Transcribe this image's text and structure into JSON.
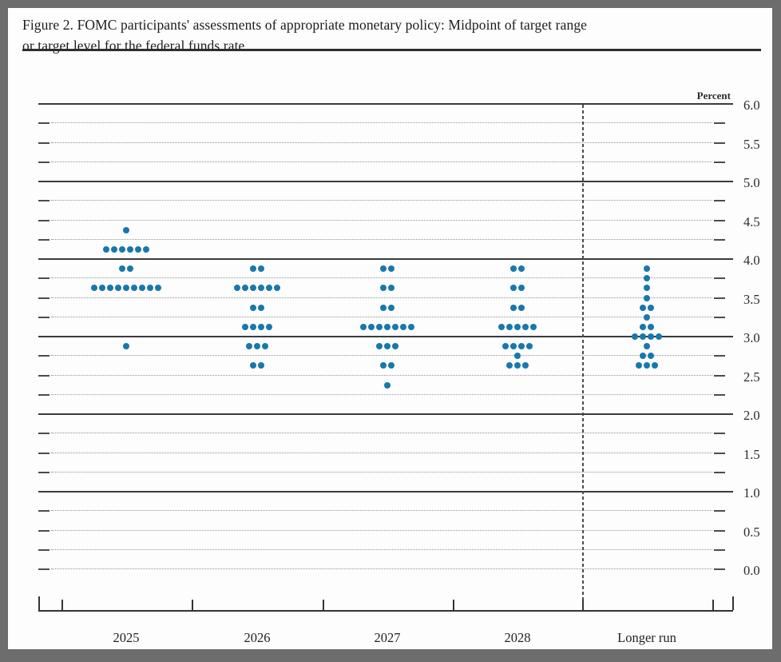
{
  "header": {
    "title_line1": "Figure 2. FOMC participants' assessments of appropriate monetary policy: Midpoint of target range",
    "title_line2": "or target level for the federal funds rate"
  },
  "chart_data": {
    "type": "scatter",
    "subtype": "fomc-dot-plot",
    "title": "Figure 2. FOMC participants' assessments of appropriate monetary policy: Midpoint of target range or target level for the federal funds rate",
    "ylabel": "Percent",
    "ylim": [
      0.0,
      6.0
    ],
    "y_tick_labels": [
      "6.0",
      "5.5",
      "5.0",
      "4.5",
      "4.0",
      "3.5",
      "3.0",
      "2.5",
      "2.0",
      "1.5",
      "1.0",
      "0.5",
      "0.0"
    ],
    "gridline_step": 0.25,
    "solid_gridlines_at": [
      6.0,
      5.0,
      4.0,
      3.0,
      2.0,
      1.0
    ],
    "legend_position": "none",
    "grid": "on",
    "dot_color": "#1878ab",
    "categories": [
      "2025",
      "2026",
      "2027",
      "2028",
      "Longer run"
    ],
    "series": [
      {
        "name": "2025",
        "dots": [
          {
            "rate": 4.375,
            "count": 1
          },
          {
            "rate": 4.125,
            "count": 6
          },
          {
            "rate": 3.875,
            "count": 2
          },
          {
            "rate": 3.625,
            "count": 9
          },
          {
            "rate": 2.875,
            "count": 1
          }
        ]
      },
      {
        "name": "2026",
        "dots": [
          {
            "rate": 3.875,
            "count": 2
          },
          {
            "rate": 3.625,
            "count": 6
          },
          {
            "rate": 3.375,
            "count": 2
          },
          {
            "rate": 3.125,
            "count": 4
          },
          {
            "rate": 2.875,
            "count": 3
          },
          {
            "rate": 2.625,
            "count": 2
          }
        ]
      },
      {
        "name": "2027",
        "dots": [
          {
            "rate": 3.875,
            "count": 2
          },
          {
            "rate": 3.625,
            "count": 2
          },
          {
            "rate": 3.375,
            "count": 2
          },
          {
            "rate": 3.125,
            "count": 7
          },
          {
            "rate": 2.875,
            "count": 3
          },
          {
            "rate": 2.625,
            "count": 2
          },
          {
            "rate": 2.375,
            "count": 1
          }
        ]
      },
      {
        "name": "2028",
        "dots": [
          {
            "rate": 3.875,
            "count": 2
          },
          {
            "rate": 3.625,
            "count": 2
          },
          {
            "rate": 3.375,
            "count": 2
          },
          {
            "rate": 3.125,
            "count": 5
          },
          {
            "rate": 2.875,
            "count": 4
          },
          {
            "rate": 2.75,
            "count": 1
          },
          {
            "rate": 2.625,
            "count": 3
          }
        ]
      },
      {
        "name": "Longer run",
        "dots": [
          {
            "rate": 3.875,
            "count": 1
          },
          {
            "rate": 3.75,
            "count": 1
          },
          {
            "rate": 3.625,
            "count": 1
          },
          {
            "rate": 3.5,
            "count": 1
          },
          {
            "rate": 3.375,
            "count": 2
          },
          {
            "rate": 3.25,
            "count": 1
          },
          {
            "rate": 3.125,
            "count": 2
          },
          {
            "rate": 3.0,
            "count": 4
          },
          {
            "rate": 2.875,
            "count": 1
          },
          {
            "rate": 2.75,
            "count": 2
          },
          {
            "rate": 2.625,
            "count": 3
          }
        ]
      }
    ]
  }
}
